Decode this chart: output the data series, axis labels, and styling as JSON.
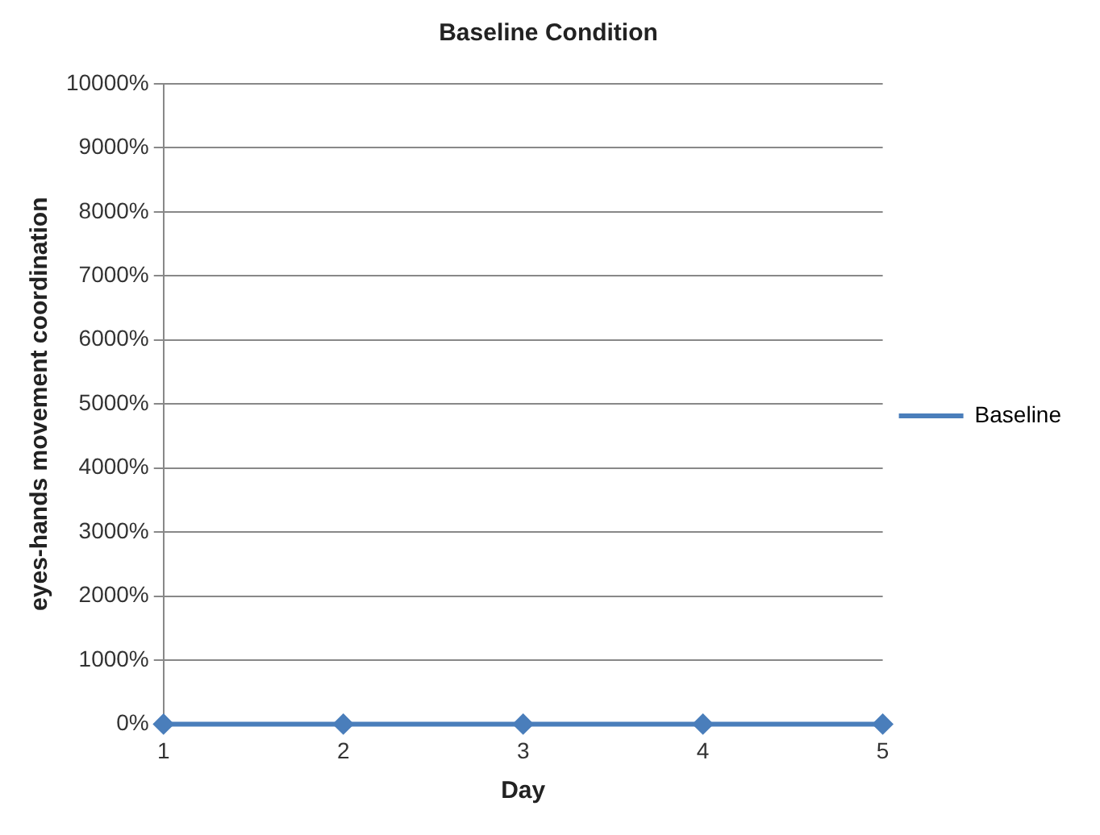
{
  "chart_data": {
    "type": "line",
    "title": "Baseline Condition",
    "xlabel": "Day",
    "ylabel": "eyes-hands movement coordination",
    "categories": [
      "1",
      "2",
      "3",
      "4",
      "5"
    ],
    "series": [
      {
        "name": "Baseline",
        "color": "#4a7ebb",
        "values": [
          0,
          0,
          0,
          0,
          0
        ]
      }
    ],
    "ylim": [
      0,
      10000
    ],
    "yticks": [
      {
        "value": 0,
        "label": "0%"
      },
      {
        "value": 1000,
        "label": "1000%"
      },
      {
        "value": 2000,
        "label": "2000%"
      },
      {
        "value": 3000,
        "label": "3000%"
      },
      {
        "value": 4000,
        "label": "4000%"
      },
      {
        "value": 5000,
        "label": "5000%"
      },
      {
        "value": 6000,
        "label": "6000%"
      },
      {
        "value": 7000,
        "label": "7000%"
      },
      {
        "value": 8000,
        "label": "8000%"
      },
      {
        "value": 9000,
        "label": "9000%"
      },
      {
        "value": 10000,
        "label": "10000%"
      }
    ],
    "grid": "y",
    "legend": "right",
    "marker": "diamond",
    "line_style": "solid"
  }
}
